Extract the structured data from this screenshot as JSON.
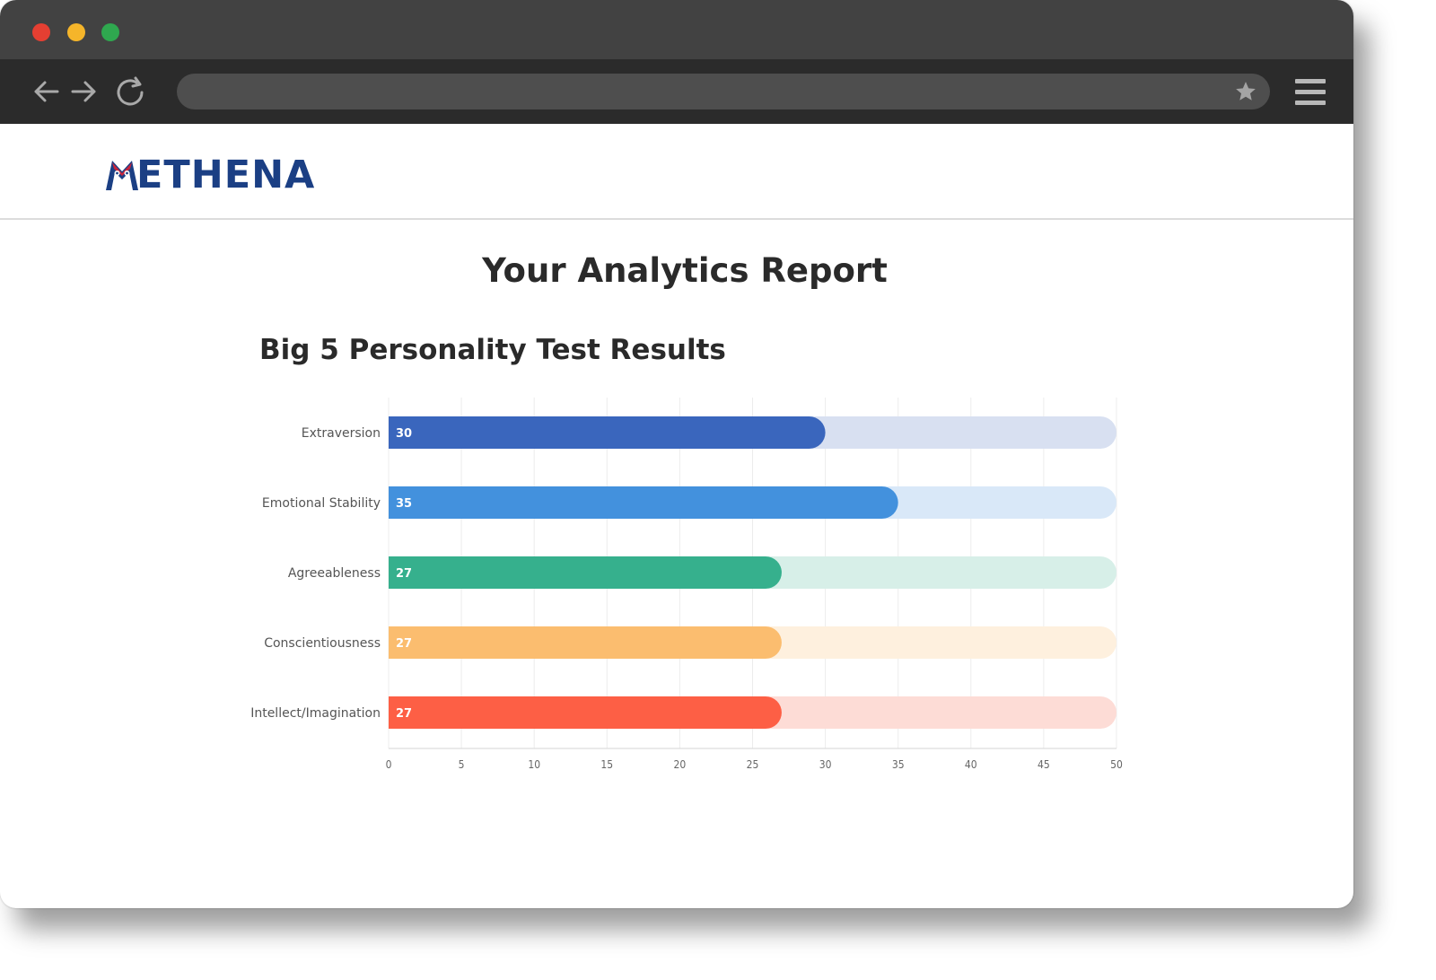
{
  "browser": {
    "url": "",
    "icons": [
      "close-dot",
      "minimize-dot",
      "maximize-dot",
      "back-arrow-icon",
      "forward-arrow-icon",
      "reload-icon",
      "star-icon",
      "hamburger-menu-icon"
    ]
  },
  "site": {
    "logo_text": "ETHENA",
    "logo_mark": "owl-m-logo"
  },
  "page": {
    "title": "Your Analytics Report",
    "section_title": "Big 5 Personality Test Results"
  },
  "chart_data": {
    "type": "bar",
    "orientation": "horizontal",
    "categories": [
      "Extraversion",
      "Emotional Stability",
      "Agreeableness",
      "Conscientiousness",
      "Intellect/Imagination"
    ],
    "values": [
      30,
      35,
      27,
      27,
      27
    ],
    "max": 50,
    "xlim": [
      0,
      50
    ],
    "xticks": [
      0,
      5,
      10,
      15,
      20,
      25,
      30,
      35,
      40,
      45,
      50
    ],
    "colors": [
      "#3a66bd",
      "#4391dd",
      "#36b08d",
      "#fbbd6f",
      "#fd5f45"
    ],
    "track_colors": [
      "#d8e0f1",
      "#d9e8f8",
      "#d7efe8",
      "#fef0de",
      "#fddcd6"
    ],
    "grid": true,
    "title": "",
    "xlabel": "",
    "ylabel": ""
  }
}
